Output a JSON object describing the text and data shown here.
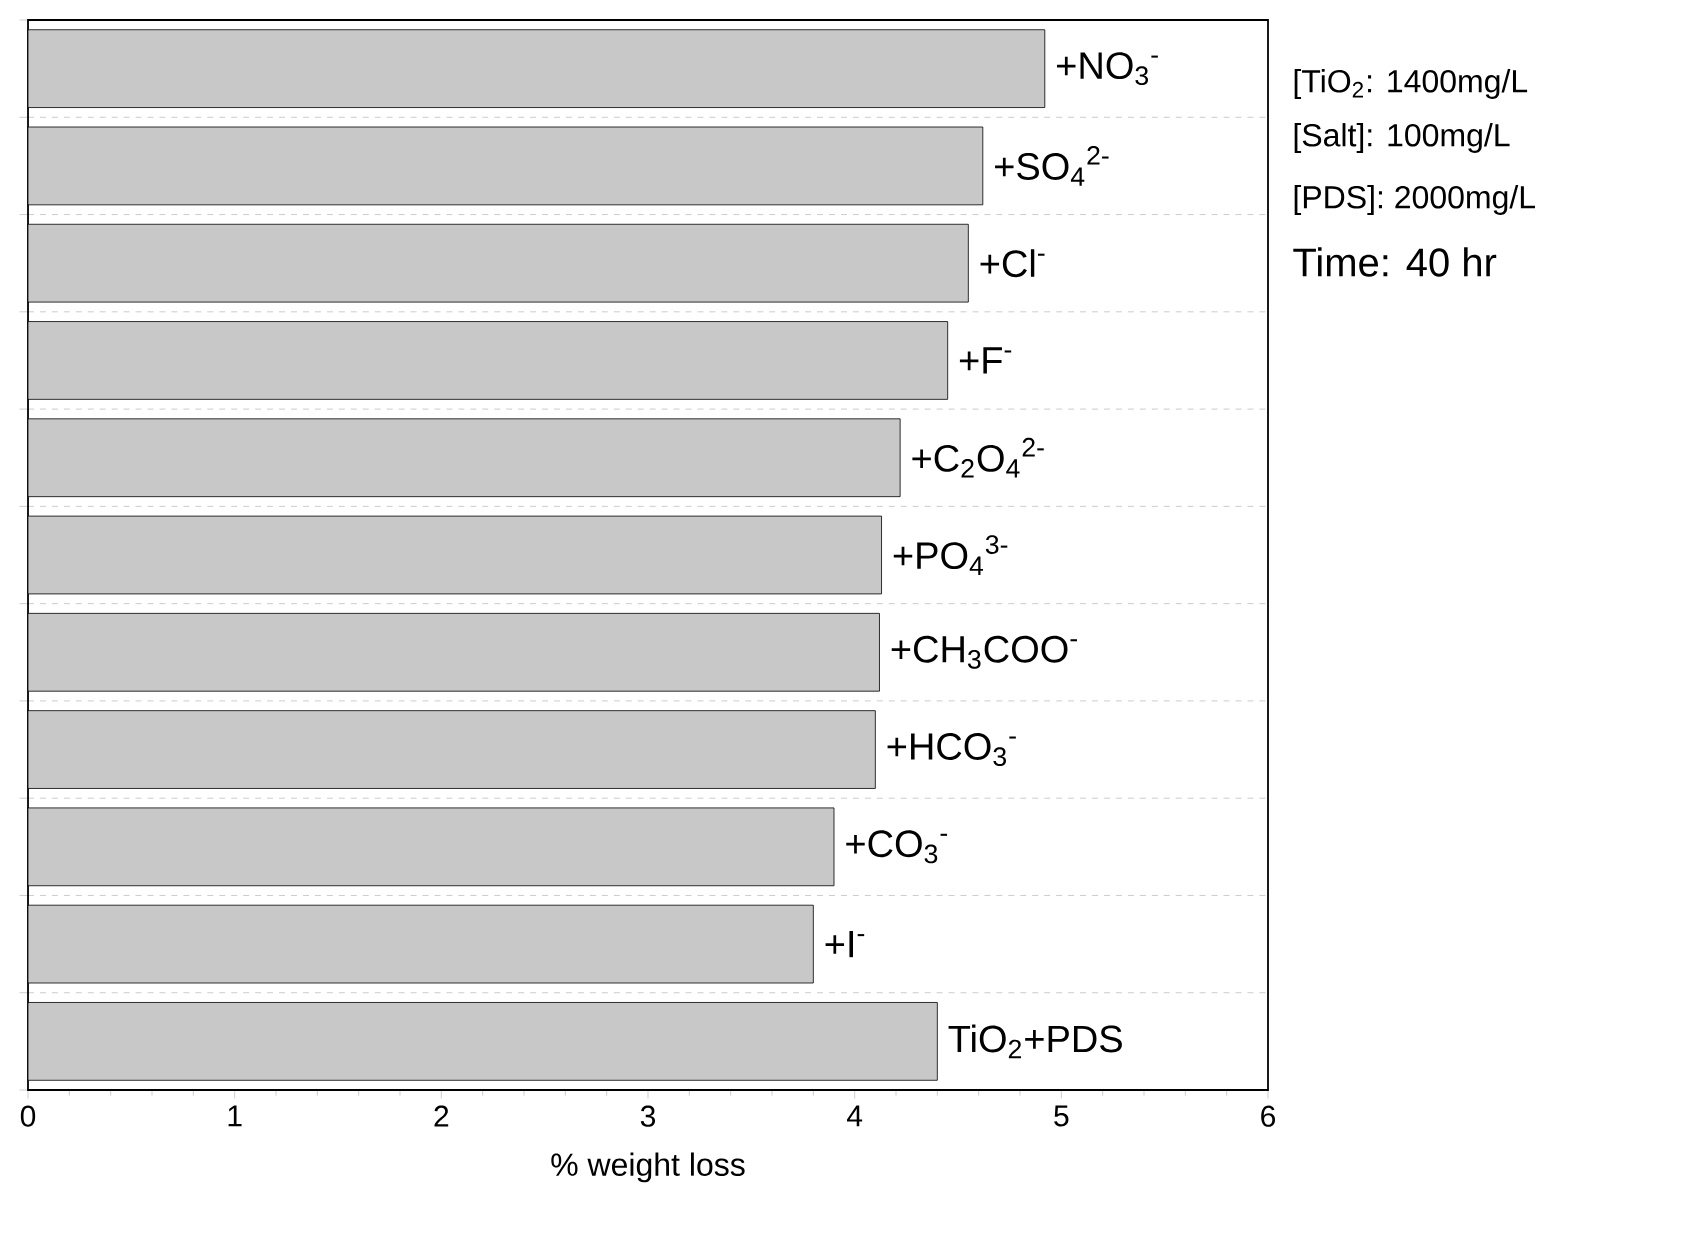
{
  "chart_data": {
    "type": "bar",
    "orientation": "horizontal",
    "categories": [
      "+NO$_{3}$$^{-}$",
      "+SO$_{4}$$^{2-}$",
      "+Cl$^{-}$",
      "+F$^{-}$",
      "+C$_{2}$O$_{4}$$^{2-}$",
      "+PO$_{4}$$^{3-}$",
      "+CH$_{3}$COO$^{-}$",
      "+HCO$_{3}$$^{-}$",
      "+CO$_{3}$$^{-}$",
      "+I$^{-}$",
      "TiO$_{2}$+PDS"
    ],
    "values": [
      4.92,
      4.62,
      4.55,
      4.45,
      4.22,
      4.13,
      4.12,
      4.1,
      3.9,
      3.8,
      4.4
    ],
    "color": "#c8c8c8",
    "xlim": [
      0,
      6
    ],
    "xticks": [
      0,
      1,
      2,
      3,
      4,
      5,
      6
    ],
    "xlabel": "% weight loss",
    "grid": "y",
    "annotations": [
      "[TiO$_{2}$:  1400mg/L",
      "[Salt]:  100mg/L",
      "[PDS]:  2000mg/L",
      "Time: 40 hr"
    ]
  }
}
